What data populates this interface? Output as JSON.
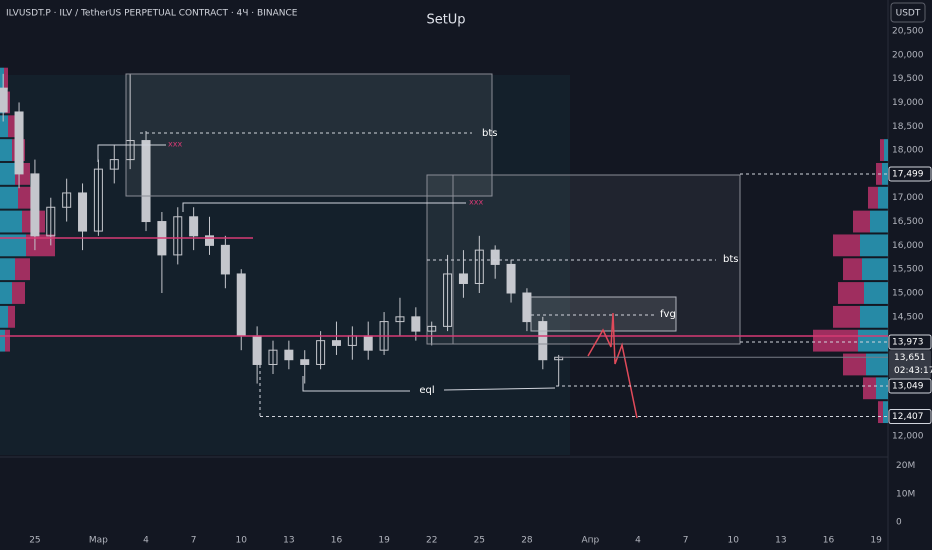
{
  "chart_data": {
    "type": "candlestick",
    "header": "ILVUSDT.P · ILV / TetherUS PERPETUAL CONTRACT · 4Ч · BINANCE",
    "title": "SetUp",
    "currency": "USDT",
    "color": "#c4c6cc",
    "x": [
      -2,
      -1,
      0,
      1,
      2,
      3,
      4,
      5,
      6,
      7,
      8,
      9,
      10,
      11,
      12,
      13,
      14,
      15,
      16,
      17,
      18,
      19,
      20,
      21,
      22,
      23,
      24,
      25,
      26,
      27,
      28,
      29,
      30,
      31,
      32,
      33
    ],
    "open": [
      19300,
      18800,
      17500,
      16200,
      16800,
      17100,
      16300,
      17600,
      17800,
      18200,
      16500,
      15800,
      16600,
      16200,
      16000,
      15400,
      14100,
      13500,
      13800,
      13600,
      13500,
      14000,
      13900,
      14100,
      13800,
      14400,
      14500,
      14200,
      14300,
      15400,
      15200,
      15900,
      15600,
      15000,
      14400,
      13600
    ],
    "high": [
      19600,
      19000,
      17800,
      17000,
      17400,
      17300,
      17800,
      18100,
      19600,
      18400,
      16700,
      16800,
      16800,
      16600,
      16200,
      15500,
      14300,
      14000,
      14000,
      13800,
      14200,
      14400,
      14300,
      14400,
      14600,
      14900,
      14700,
      14400,
      15800,
      15900,
      16200,
      16000,
      15700,
      15100,
      14500,
      13700
    ],
    "low": [
      18600,
      17200,
      15900,
      16000,
      16500,
      15900,
      16200,
      17300,
      17600,
      16300,
      15000,
      15600,
      15900,
      15800,
      15100,
      13800,
      13100,
      13300,
      13400,
      13100,
      13400,
      13700,
      13600,
      13600,
      13700,
      14100,
      14000,
      13900,
      14200,
      14900,
      15000,
      15300,
      14800,
      14200,
      13400,
      13049
    ],
    "close": [
      18800,
      17500,
      16200,
      16800,
      17100,
      16300,
      17600,
      17800,
      18200,
      16500,
      15800,
      16600,
      16200,
      16000,
      15400,
      14100,
      13500,
      13800,
      13600,
      13500,
      14000,
      13900,
      14100,
      13800,
      14400,
      14500,
      14200,
      14300,
      15400,
      15200,
      15900,
      15600,
      15000,
      14400,
      13600,
      13651
    ],
    "xlim": [
      -2.2,
      53.75
    ],
    "xticks": [
      {
        "value": 0,
        "label": "25"
      },
      {
        "value": 4,
        "label": "Мар"
      },
      {
        "value": 7,
        "label": "4"
      },
      {
        "value": 10,
        "label": "7"
      },
      {
        "value": 13,
        "label": "10"
      },
      {
        "value": 16,
        "label": "13"
      },
      {
        "value": 19,
        "label": "16"
      },
      {
        "value": 22,
        "label": "19"
      },
      {
        "value": 25,
        "label": "22"
      },
      {
        "value": 28,
        "label": "25"
      },
      {
        "value": 31,
        "label": "28"
      },
      {
        "value": 35,
        "label": "Апр"
      },
      {
        "value": 38,
        "label": "4"
      },
      {
        "value": 41,
        "label": "7"
      },
      {
        "value": 44,
        "label": "10"
      },
      {
        "value": 47,
        "label": "13"
      },
      {
        "value": 50,
        "label": "16"
      },
      {
        "value": 53,
        "label": "19"
      }
    ],
    "ylim": [
      11600,
      21150
    ],
    "yticks": [
      {
        "value": 12000,
        "label": "12,000"
      },
      {
        "value": 14500,
        "label": "14,500"
      },
      {
        "value": 15000,
        "label": "15,000"
      },
      {
        "value": 15500,
        "label": "15,500"
      },
      {
        "value": 16000,
        "label": "16,000"
      },
      {
        "value": 16500,
        "label": "16,500"
      },
      {
        "value": 17000,
        "label": "17,000"
      },
      {
        "value": 18000,
        "label": "18,000"
      },
      {
        "value": 18500,
        "label": "18,500"
      },
      {
        "value": 19000,
        "label": "19,000"
      },
      {
        "value": 19500,
        "label": "19,500"
      },
      {
        "value": 20000,
        "label": "20,000"
      },
      {
        "value": 20500,
        "label": "20,500"
      }
    ],
    "y2lim": [
      0,
      22000000
    ],
    "y2ticks": [
      {
        "value": 0,
        "label": "0"
      },
      {
        "value": 10000000,
        "label": "10M"
      },
      {
        "value": 20000000,
        "label": "20M"
      }
    ],
    "price_levels": [
      {
        "value": 17499,
        "label": "17,499"
      },
      {
        "value": 13973,
        "label": "13,973"
      },
      {
        "value": 13049,
        "label": "13,049"
      },
      {
        "value": 12407,
        "label": "12,407"
      }
    ],
    "last_price": {
      "value": 13651,
      "label": "13,651",
      "countdown": "02:43:17"
    },
    "annotations": {
      "bts_1": "bts",
      "bts_2": "bts",
      "fvg": "fvg",
      "eql": "eql",
      "xxx_1": "xxx",
      "xxx_2": "xxx"
    },
    "profile_right": {
      "levels": [
        12500,
        13000,
        13500,
        14000,
        14500,
        15000,
        15500,
        16000,
        16500,
        17000,
        17500,
        18000
      ],
      "buy": [
        5,
        12,
        22,
        30,
        28,
        24,
        26,
        28,
        18,
        10,
        6,
        4
      ],
      "sell": [
        5,
        13,
        23,
        45,
        27,
        26,
        19,
        27,
        17,
        10,
        6,
        4
      ]
    },
    "profile_left": {
      "levels": [
        14000,
        14500,
        15000,
        15500,
        16000,
        16500,
        17000,
        17500,
        18000,
        18500,
        19000,
        19500
      ],
      "buy": [
        5,
        8,
        12,
        15,
        26,
        22,
        18,
        15,
        12,
        8,
        5,
        4
      ],
      "sell": [
        5,
        7,
        13,
        15,
        29,
        23,
        17,
        15,
        13,
        7,
        5,
        4
      ]
    }
  }
}
